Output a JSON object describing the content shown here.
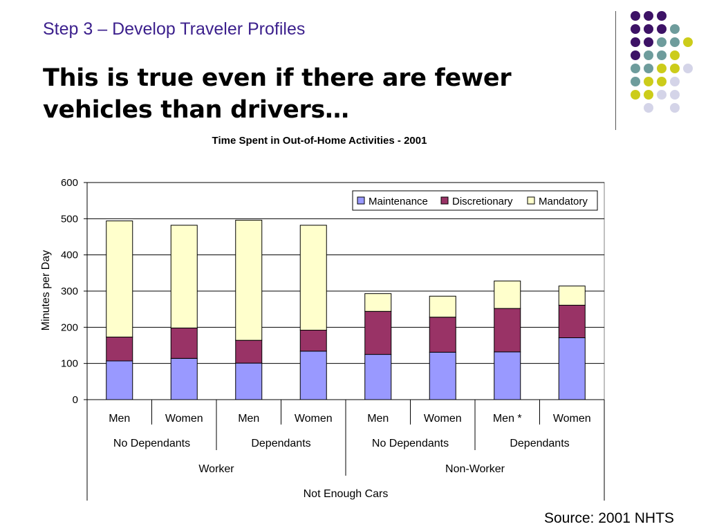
{
  "slide": {
    "step_title": "Step 3 – Develop Traveler Profiles",
    "headline": "This is true even if there are fewer vehicles than drivers…",
    "source": "Source:  2001 NHTS"
  },
  "colors": {
    "title": "#3b1f8c",
    "maintenance": "#9999ff",
    "discretionary": "#993366",
    "mandatory": "#ffffcc",
    "dot_purple": "#3d1266",
    "dot_teal": "#6e9c9c",
    "dot_yellow": "#cccc1a",
    "dot_lavender": "#d4d4e8"
  },
  "chart_data": {
    "type": "bar",
    "stacked": true,
    "title": "Time Spent in Out-of-Home Activities - 2001",
    "ylabel": "Minutes per Day",
    "ylim": [
      0,
      600
    ],
    "yticks": [
      0,
      100,
      200,
      300,
      400,
      500,
      600
    ],
    "grid": true,
    "legend_position": "top-right",
    "categories": [
      "Men",
      "Women",
      "Men",
      "Women",
      "Men",
      "Women",
      "Men *",
      "Women"
    ],
    "category_groups": [
      {
        "level": 2,
        "labels": [
          "No Dependants",
          "Dependants",
          "No Dependants",
          "Dependants"
        ],
        "span": 2
      },
      {
        "level": 3,
        "labels": [
          "Worker",
          "Non-Worker"
        ],
        "span": 4
      },
      {
        "level": 4,
        "labels": [
          "Not Enough Cars"
        ],
        "span": 8
      }
    ],
    "series": [
      {
        "name": "Maintenance",
        "values": [
          107,
          114,
          101,
          134,
          125,
          131,
          132,
          171
        ]
      },
      {
        "name": "Discretionary",
        "values": [
          66,
          84,
          63,
          58,
          119,
          97,
          120,
          90
        ]
      },
      {
        "name": "Mandatory",
        "values": [
          321,
          284,
          332,
          290,
          49,
          58,
          76,
          53
        ]
      }
    ]
  }
}
